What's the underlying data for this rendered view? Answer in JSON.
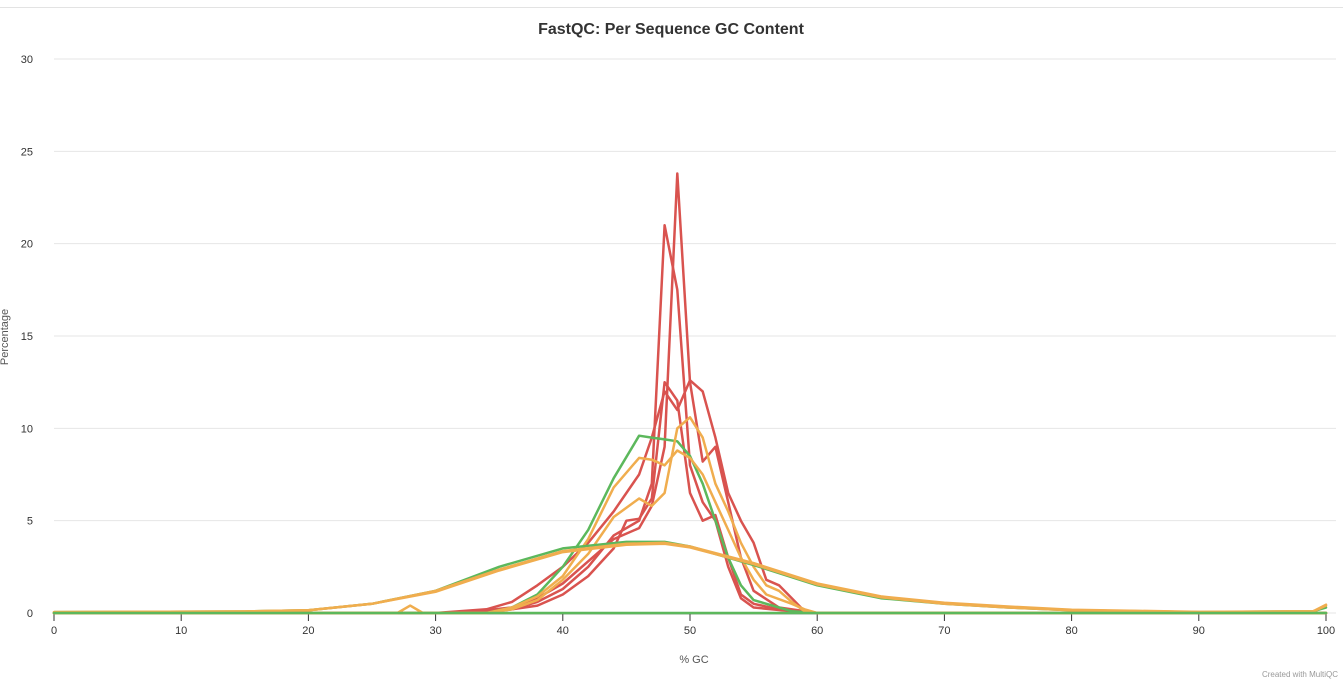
{
  "chart_data": {
    "type": "line",
    "title": "FastQC: Per Sequence GC Content",
    "xlabel": "% GC",
    "ylabel": "Percentage",
    "xlim": [
      0,
      100
    ],
    "ylim": [
      0,
      30
    ],
    "x_ticks": [
      "0",
      "10",
      "20",
      "30",
      "40",
      "50",
      "60",
      "70",
      "80",
      "90",
      "100"
    ],
    "y_ticks": [
      "0",
      "5",
      "10",
      "15",
      "20",
      "25",
      "30"
    ],
    "grid": true,
    "legend": "none",
    "credit": "Created with MultiQC",
    "colors": {
      "pass": "#5cb85c",
      "warn": "#f0ad4e",
      "fail": "#d9534f"
    },
    "series": [
      {
        "status": "fail",
        "points": [
          [
            0,
            0
          ],
          [
            30,
            0
          ],
          [
            35,
            0.1
          ],
          [
            38,
            0.4
          ],
          [
            40,
            1.0
          ],
          [
            42,
            2.0
          ],
          [
            44,
            3.5
          ],
          [
            45,
            5.0
          ],
          [
            46,
            5.1
          ],
          [
            47,
            6.2
          ],
          [
            48,
            12.5
          ],
          [
            49,
            11.5
          ],
          [
            50,
            6.5
          ],
          [
            51,
            5.0
          ],
          [
            52,
            5.3
          ],
          [
            53,
            3.0
          ],
          [
            54,
            1.0
          ],
          [
            55,
            0.5
          ],
          [
            57,
            0.2
          ],
          [
            60,
            0
          ],
          [
            100,
            0
          ]
        ]
      },
      {
        "status": "fail",
        "points": [
          [
            0,
            0
          ],
          [
            32,
            0
          ],
          [
            36,
            0.2
          ],
          [
            38,
            0.6
          ],
          [
            40,
            1.3
          ],
          [
            42,
            2.5
          ],
          [
            44,
            4.2
          ],
          [
            46,
            5.0
          ],
          [
            47,
            7.0
          ],
          [
            48,
            21.0
          ],
          [
            49,
            17.5
          ],
          [
            50,
            8.0
          ],
          [
            51,
            6.0
          ],
          [
            52,
            5.0
          ],
          [
            53,
            2.5
          ],
          [
            54,
            0.8
          ],
          [
            55,
            0.3
          ],
          [
            58,
            0.1
          ],
          [
            60,
            0
          ],
          [
            100,
            0
          ]
        ]
      },
      {
        "status": "fail",
        "points": [
          [
            0,
            0
          ],
          [
            32,
            0
          ],
          [
            36,
            0.3
          ],
          [
            38,
            0.8
          ],
          [
            40,
            1.6
          ],
          [
            42,
            2.8
          ],
          [
            44,
            4.0
          ],
          [
            46,
            4.6
          ],
          [
            47,
            5.8
          ],
          [
            48,
            9.0
          ],
          [
            49,
            23.8
          ],
          [
            50,
            12.5
          ],
          [
            51,
            8.2
          ],
          [
            52,
            9.0
          ],
          [
            53,
            6.0
          ],
          [
            54,
            3.0
          ],
          [
            55,
            1.2
          ],
          [
            57,
            0.3
          ],
          [
            60,
            0
          ],
          [
            100,
            0
          ]
        ]
      },
      {
        "status": "fail",
        "points": [
          [
            0,
            0
          ],
          [
            30,
            0
          ],
          [
            34,
            0.2
          ],
          [
            36,
            0.6
          ],
          [
            38,
            1.5
          ],
          [
            40,
            2.5
          ],
          [
            42,
            3.8
          ],
          [
            44,
            5.5
          ],
          [
            46,
            7.5
          ],
          [
            47,
            9.5
          ],
          [
            48,
            12.0
          ],
          [
            49,
            11.0
          ],
          [
            50,
            12.6
          ],
          [
            51,
            12.0
          ],
          [
            52,
            9.5
          ],
          [
            53,
            6.5
          ],
          [
            54,
            5.0
          ],
          [
            55,
            3.8
          ],
          [
            56,
            1.8
          ],
          [
            57,
            1.5
          ],
          [
            58,
            0.8
          ],
          [
            59,
            0.1
          ],
          [
            60,
            0
          ],
          [
            100,
            0
          ]
        ]
      },
      {
        "status": "pass",
        "points": [
          [
            0,
            0
          ],
          [
            34,
            0
          ],
          [
            36,
            0.3
          ],
          [
            38,
            1.0
          ],
          [
            40,
            2.5
          ],
          [
            42,
            4.5
          ],
          [
            44,
            7.3
          ],
          [
            46,
            9.6
          ],
          [
            47,
            9.5
          ],
          [
            48,
            9.4
          ],
          [
            49,
            9.3
          ],
          [
            50,
            8.5
          ],
          [
            51,
            7.0
          ],
          [
            52,
            5.0
          ],
          [
            53,
            3.0
          ],
          [
            54,
            1.5
          ],
          [
            55,
            0.7
          ],
          [
            57,
            0.3
          ],
          [
            58,
            0.1
          ],
          [
            60,
            0
          ],
          [
            100,
            0
          ]
        ]
      },
      {
        "status": "warn",
        "points": [
          [
            0,
            0
          ],
          [
            34,
            0
          ],
          [
            36,
            0.3
          ],
          [
            38,
            0.9
          ],
          [
            40,
            2.0
          ],
          [
            42,
            4.0
          ],
          [
            44,
            6.8
          ],
          [
            46,
            8.4
          ],
          [
            47,
            8.3
          ],
          [
            48,
            8.0
          ],
          [
            49,
            8.8
          ],
          [
            50,
            8.4
          ],
          [
            51,
            7.5
          ],
          [
            52,
            6.0
          ],
          [
            53,
            4.5
          ],
          [
            54,
            3.0
          ],
          [
            55,
            1.8
          ],
          [
            56,
            1.0
          ],
          [
            58,
            0.5
          ],
          [
            59,
            0.2
          ],
          [
            60,
            0
          ],
          [
            100,
            0
          ]
        ]
      },
      {
        "status": "warn",
        "points": [
          [
            0,
            0
          ],
          [
            27,
            0
          ],
          [
            28,
            0.4
          ],
          [
            29,
            0
          ],
          [
            34,
            0
          ],
          [
            36,
            0.2
          ],
          [
            38,
            0.7
          ],
          [
            40,
            1.8
          ],
          [
            42,
            3.2
          ],
          [
            44,
            5.2
          ],
          [
            46,
            6.2
          ],
          [
            47,
            5.8
          ],
          [
            48,
            6.5
          ],
          [
            49,
            10.0
          ],
          [
            50,
            10.6
          ],
          [
            51,
            9.5
          ],
          [
            52,
            7.0
          ],
          [
            53,
            5.5
          ],
          [
            54,
            3.8
          ],
          [
            55,
            2.5
          ],
          [
            56,
            1.5
          ],
          [
            57,
            1.2
          ],
          [
            58,
            0.6
          ],
          [
            59,
            0.1
          ],
          [
            60,
            0
          ],
          [
            100,
            0
          ]
        ]
      },
      {
        "status": "pass",
        "points": [
          [
            0,
            0.05
          ],
          [
            15,
            0.08
          ],
          [
            20,
            0.15
          ],
          [
            25,
            0.5
          ],
          [
            30,
            1.2
          ],
          [
            35,
            2.5
          ],
          [
            40,
            3.5
          ],
          [
            45,
            3.85
          ],
          [
            48,
            3.85
          ],
          [
            50,
            3.6
          ],
          [
            55,
            2.6
          ],
          [
            60,
            1.5
          ],
          [
            65,
            0.8
          ],
          [
            70,
            0.5
          ],
          [
            75,
            0.3
          ],
          [
            80,
            0.15
          ],
          [
            90,
            0.05
          ],
          [
            99,
            0.1
          ],
          [
            100,
            0.3
          ]
        ]
      },
      {
        "status": "warn",
        "points": [
          [
            0,
            0.05
          ],
          [
            15,
            0.08
          ],
          [
            20,
            0.15
          ],
          [
            25,
            0.5
          ],
          [
            30,
            1.2
          ],
          [
            35,
            2.35
          ],
          [
            40,
            3.35
          ],
          [
            45,
            3.75
          ],
          [
            48,
            3.8
          ],
          [
            50,
            3.6
          ],
          [
            55,
            2.7
          ],
          [
            60,
            1.6
          ],
          [
            65,
            0.9
          ],
          [
            70,
            0.55
          ],
          [
            75,
            0.35
          ],
          [
            80,
            0.18
          ],
          [
            90,
            0.06
          ],
          [
            99,
            0.1
          ],
          [
            100,
            0.45
          ]
        ]
      },
      {
        "status": "warn",
        "points": [
          [
            0,
            0.05
          ],
          [
            15,
            0.08
          ],
          [
            20,
            0.15
          ],
          [
            25,
            0.5
          ],
          [
            30,
            1.15
          ],
          [
            35,
            2.3
          ],
          [
            40,
            3.3
          ],
          [
            45,
            3.7
          ],
          [
            48,
            3.75
          ],
          [
            50,
            3.55
          ],
          [
            55,
            2.65
          ],
          [
            60,
            1.55
          ],
          [
            65,
            0.85
          ],
          [
            70,
            0.5
          ],
          [
            75,
            0.3
          ],
          [
            80,
            0.15
          ],
          [
            90,
            0.05
          ],
          [
            99,
            0.08
          ],
          [
            100,
            0.4
          ]
        ]
      },
      {
        "status": "pass",
        "points": [
          [
            0,
            0
          ],
          [
            100,
            0
          ]
        ]
      }
    ]
  }
}
